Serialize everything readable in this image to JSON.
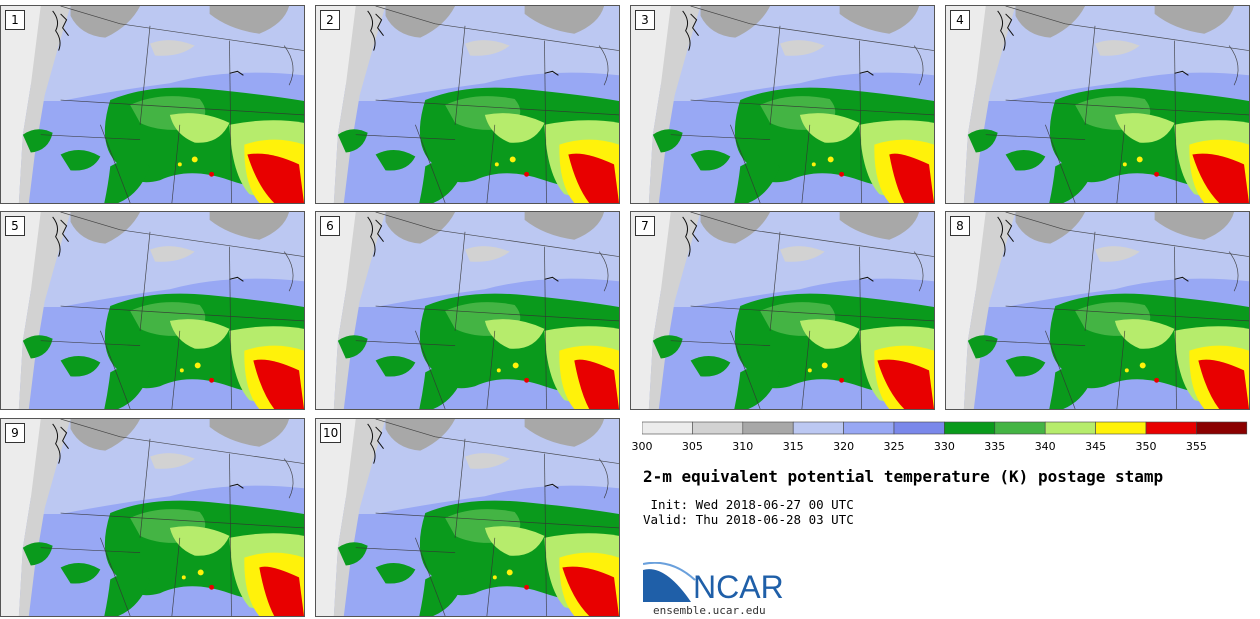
{
  "panels": [
    {
      "label": "1"
    },
    {
      "label": "2"
    },
    {
      "label": "3"
    },
    {
      "label": "4"
    },
    {
      "label": "5"
    },
    {
      "label": "6"
    },
    {
      "label": "7"
    },
    {
      "label": "8"
    },
    {
      "label": "9"
    },
    {
      "label": "10"
    }
  ],
  "colorbar": {
    "tick_labels": [
      "300",
      "305",
      "310",
      "315",
      "320",
      "325",
      "330",
      "335",
      "340",
      "345",
      "350",
      "355"
    ],
    "colors": [
      "#ececec",
      "#d2d2d2",
      "#a8a8a8",
      "#bcc8f2",
      "#98a8f4",
      "#7a88ea",
      "#0a9a1c",
      "#44b444",
      "#b6ec6c",
      "#fff20a",
      "#e80000",
      "#8a0000"
    ]
  },
  "title": "2-m equivalent potential temperature (K) postage stamp",
  "init": " Init: Wed 2018-06-27 00 UTC",
  "valid": "Valid: Thu 2018-06-28 03 UTC",
  "logo": {
    "text": "NCAR",
    "url": "ensemble.ucar.edu",
    "colors": {
      "blue": "#1f5fa8",
      "text": "#1f5fa8"
    }
  }
}
